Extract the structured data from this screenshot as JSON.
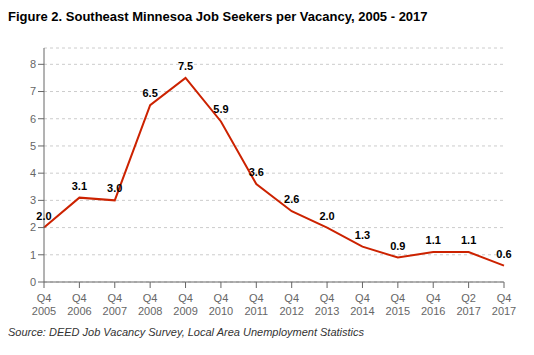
{
  "chart_data": {
    "type": "line",
    "title": "Figure 2. Southeast Minnesoa Job Seekers per Vacancy, 2005 - 2017",
    "categories": [
      "Q4\n2005",
      "Q4\n2006",
      "Q4\n2007",
      "Q4\n2008",
      "Q4\n2009",
      "Q4\n2010",
      "Q4\n2011",
      "Q4\n2012",
      "Q4\n2013",
      "Q4\n2014",
      "Q4\n2015",
      "Q4\n2016",
      "Q2\n2017",
      "Q4\n2017"
    ],
    "values": [
      2.0,
      3.1,
      3.0,
      6.5,
      7.5,
      5.9,
      3.6,
      2.6,
      2.0,
      1.3,
      0.9,
      1.1,
      1.1,
      0.6
    ],
    "value_labels": [
      "2.0",
      "3.1",
      "3.0",
      "6.5",
      "7.5",
      "5.9",
      "3.6",
      "2.6",
      "2.0",
      "1.3",
      "0.9",
      "1.1",
      "1.1",
      "0.6"
    ],
    "data_labels": true,
    "color": "#cc2200",
    "ylim": [
      0,
      8.6
    ],
    "yticks": [
      0,
      1,
      2,
      3,
      4,
      5,
      6,
      7,
      8
    ],
    "grid": true,
    "annotations": [
      "Source: DEED Job Vacancy Survey, Local Area Unemployment Statistics"
    ]
  }
}
